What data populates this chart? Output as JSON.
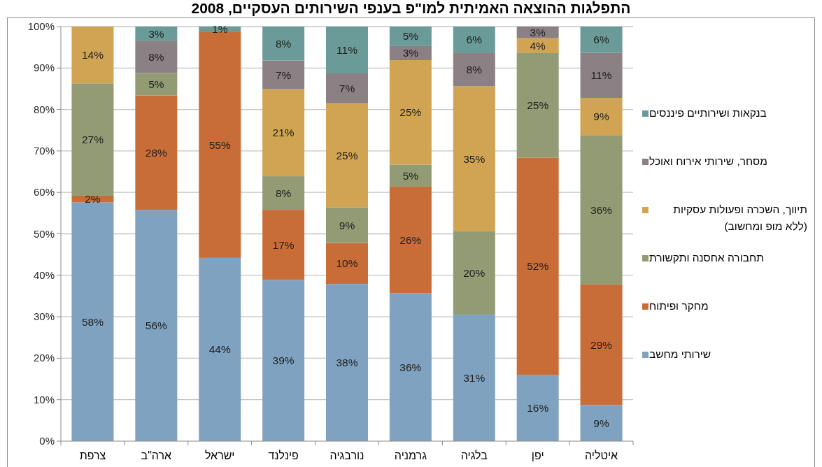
{
  "chart_data": {
    "type": "bar",
    "stacked": true,
    "title": "התפלגות ההוצאה האמיתית למו\"פ בענפי השירותים העסקיים, 2008",
    "categories": [
      "צרפת",
      "ארה\"ב",
      "ישראל",
      "פינלנד",
      "נורבגיה",
      "גרמניה",
      "בלגיה",
      "יפן",
      "איטליה"
    ],
    "series": [
      {
        "name": "שירותי מחשב",
        "color": "#7fa2c0",
        "values": [
          57.6,
          55.8,
          44.2,
          38.9,
          37.9,
          35.7,
          30.5,
          16.0,
          8.7
        ],
        "value_labels": [
          "58%",
          "56%",
          "44%",
          "39%",
          "38%",
          "36%",
          "31%",
          "16%",
          "9%"
        ]
      },
      {
        "name": "מחקר ופיתוח",
        "color": "#c96d38",
        "values": [
          1.6,
          27.6,
          54.6,
          16.9,
          9.9,
          25.7,
          null,
          52.4,
          29.1
        ],
        "value_labels": [
          "2%",
          "28%",
          "55%",
          "17%",
          "10%",
          "26%",
          null,
          "52%",
          "29%"
        ]
      },
      {
        "name": "תחבורה אחסנה ותקשורת",
        "color": "#939b74",
        "values": [
          27.1,
          5.4,
          null,
          8.1,
          8.6,
          5.3,
          20.1,
          25.2,
          35.9
        ],
        "value_labels": [
          "27%",
          "5%",
          null,
          "8%",
          "9%",
          "5%",
          "20%",
          "25%",
          "36%"
        ]
      },
      {
        "name": "תיווך, השכרה ופעולות עסקיות (ללא מופ ומחשוב)",
        "color": "#d0a453",
        "values": [
          13.7,
          null,
          null,
          21.0,
          25.1,
          25.2,
          35.0,
          3.6,
          9.1
        ],
        "value_labels": [
          "14%",
          null,
          null,
          "21%",
          "25%",
          "25%",
          "35%",
          "4%",
          "9%"
        ]
      },
      {
        "name": "מסחר, שירותי אירוח ואוכל",
        "color": "#8b8084",
        "values": [
          null,
          7.8,
          null,
          6.9,
          7.2,
          3.4,
          8.0,
          2.8,
          10.9
        ],
        "value_labels": [
          null,
          "8%",
          null,
          "7%",
          "7%",
          "3%",
          "8%",
          "3%",
          "11%"
        ]
      },
      {
        "name": "בנקאות ושירותיים פיננסים",
        "color": "#6b9b98",
        "values": [
          null,
          3.4,
          1.2,
          8.2,
          11.3,
          4.7,
          6.4,
          null,
          6.3
        ],
        "value_labels": [
          null,
          "3%",
          "1%",
          "8%",
          "11%",
          "5%",
          "6%",
          null,
          "6%"
        ]
      }
    ],
    "ylim": [
      0,
      100
    ],
    "yticks": [
      {
        "value": 0,
        "label": "0%"
      },
      {
        "value": 10,
        "label": "10%"
      },
      {
        "value": 20,
        "label": "20%"
      },
      {
        "value": 30,
        "label": "30%"
      },
      {
        "value": 40,
        "label": "40%"
      },
      {
        "value": 50,
        "label": "50%"
      },
      {
        "value": 60,
        "label": "60%"
      },
      {
        "value": 70,
        "label": "70%"
      },
      {
        "value": 80,
        "label": "80%"
      },
      {
        "value": 90,
        "label": "90%"
      },
      {
        "value": 100,
        "label": "100%"
      }
    ],
    "grid": "y",
    "legend": "right"
  }
}
